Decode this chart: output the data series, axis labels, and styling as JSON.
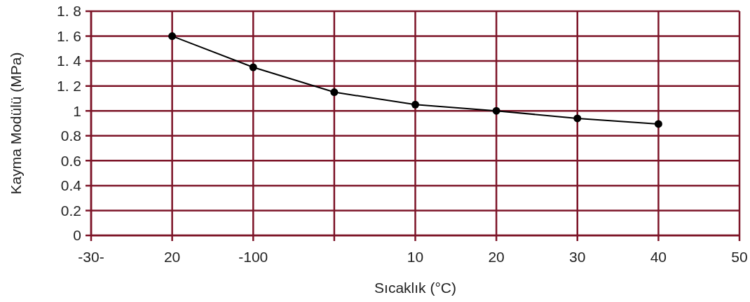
{
  "chart_data": {
    "type": "line",
    "xlabel": "Sıcaklık (°C)",
    "ylabel": "Kayma Modülü (MPa)",
    "categories": [
      "-30-",
      "20",
      "-100",
      null,
      "10",
      "20",
      "30",
      "40",
      "50"
    ],
    "series": [
      {
        "color": "#000000",
        "values": [
          null,
          1.6,
          1.35,
          1.15,
          1.05,
          1.0,
          0.94,
          0.895,
          null
        ]
      }
    ],
    "ylim": [
      0,
      1.8
    ],
    "yticks": [
      0,
      0.2,
      0.4,
      0.6,
      0.8,
      1,
      {
        "value": 1.2,
        "label": "1. 2"
      },
      {
        "value": 1.4,
        "label": "1. 4"
      },
      {
        "value": 1.6,
        "label": "1. 6"
      },
      {
        "value": 1.8,
        "label": "1. 8"
      }
    ],
    "grid": true,
    "marker": "circle",
    "line_style": "solid"
  }
}
